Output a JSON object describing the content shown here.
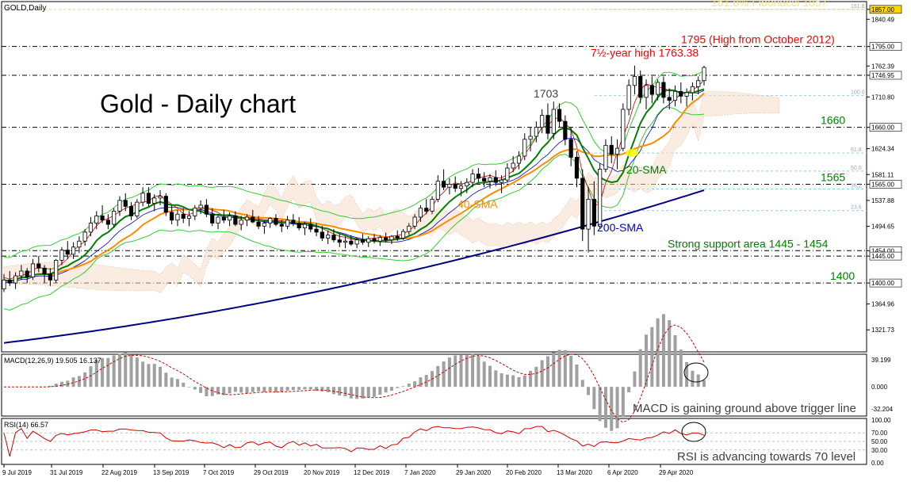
{
  "header": {
    "symbol_label": "GOLD,Daily"
  },
  "chart_data": {
    "type": "candlestick",
    "symbol": "GOLD",
    "timeframe": "Daily",
    "title": "Gold - Daily chart",
    "ylim": [
      1285,
      1870
    ],
    "y_ticks": [
      1840.49,
      1795.0,
      1762.39,
      1746.95,
      1710.8,
      1660.0,
      1624.34,
      1581.11,
      1565.0,
      1537.88,
      1494.65,
      1454.0,
      1445.0,
      1400.0,
      1364.96,
      1321.73,
      1857.0
    ],
    "x_labels": [
      "9 Jul 2019",
      "31 Jul 2019",
      "22 Aug 2019",
      "13 Sep 2019",
      "7 Oct 2019",
      "29 Oct 2019",
      "20 Nov 2019",
      "12 Dec 2019",
      "7 Jan 2020",
      "29 Jan 2020",
      "20 Feb 2020",
      "13 Mar 2020",
      "6 Apr 2020",
      "29 Apr 2020"
    ],
    "key_levels": [
      {
        "value": 1857,
        "label": "161.8% Fibonacci 1857",
        "color": "#f0e68c"
      },
      {
        "value": 1795,
        "label": "1795 (High from October 2012)",
        "color": "#ff0000"
      },
      {
        "value": 1746.95,
        "label": "",
        "color": "#000000"
      },
      {
        "value": 1660,
        "label": "1660",
        "color": "#008000"
      },
      {
        "value": 1565,
        "label": "1565",
        "color": "#008000"
      },
      {
        "value": 1454,
        "label": "Strong support area 1445 - 1454",
        "color": "#008000"
      },
      {
        "value": 1445,
        "label": "",
        "color": "#000000"
      },
      {
        "value": 1400,
        "label": "1400",
        "color": "#008000"
      }
    ],
    "fib_levels": [
      {
        "value": 1857,
        "label": "161.8"
      },
      {
        "value": 1713,
        "label": "100.0"
      },
      {
        "value": 1617,
        "label": "61.8"
      },
      {
        "value": 1587,
        "label": "50.0"
      },
      {
        "value": 1557,
        "label": "38.2"
      },
      {
        "value": 1521,
        "label": "23.6"
      }
    ],
    "annotations": [
      {
        "text": "7½-year high 1763.38",
        "color": "#ff0000"
      },
      {
        "text": "1703",
        "color": "#404040"
      },
      {
        "text": "20-SMA",
        "color": "#008000"
      },
      {
        "text": "40-SMA",
        "color": "#ff8c00"
      },
      {
        "text": "200-SMA",
        "color": "#0000cd"
      }
    ],
    "series": [
      {
        "name": "20-SMA",
        "color": "#008000"
      },
      {
        "name": "40-SMA",
        "color": "#ff8c00"
      },
      {
        "name": "200-SMA",
        "color": "#000080"
      }
    ],
    "ohlc": [
      [
        1390,
        1415,
        1385,
        1405
      ],
      [
        1405,
        1420,
        1395,
        1400
      ],
      [
        1400,
        1418,
        1390,
        1412
      ],
      [
        1412,
        1430,
        1405,
        1420
      ],
      [
        1420,
        1425,
        1400,
        1410
      ],
      [
        1410,
        1440,
        1405,
        1432
      ],
      [
        1432,
        1445,
        1418,
        1425
      ],
      [
        1425,
        1430,
        1400,
        1415
      ],
      [
        1415,
        1425,
        1395,
        1405
      ],
      [
        1405,
        1440,
        1400,
        1438
      ],
      [
        1438,
        1460,
        1430,
        1455
      ],
      [
        1455,
        1470,
        1440,
        1448
      ],
      [
        1448,
        1468,
        1440,
        1460
      ],
      [
        1460,
        1478,
        1450,
        1470
      ],
      [
        1470,
        1490,
        1462,
        1485
      ],
      [
        1485,
        1510,
        1478,
        1500
      ],
      [
        1500,
        1520,
        1490,
        1512
      ],
      [
        1512,
        1530,
        1500,
        1505
      ],
      [
        1505,
        1515,
        1490,
        1498
      ],
      [
        1498,
        1525,
        1492,
        1520
      ],
      [
        1520,
        1545,
        1512,
        1538
      ],
      [
        1538,
        1550,
        1520,
        1528
      ],
      [
        1528,
        1535,
        1505,
        1512
      ],
      [
        1512,
        1540,
        1508,
        1535
      ],
      [
        1535,
        1560,
        1528,
        1550
      ],
      [
        1550,
        1560,
        1528,
        1533
      ],
      [
        1533,
        1548,
        1520,
        1542
      ],
      [
        1542,
        1555,
        1530,
        1545
      ],
      [
        1545,
        1550,
        1512,
        1518
      ],
      [
        1518,
        1530,
        1498,
        1505
      ],
      [
        1505,
        1522,
        1495,
        1515
      ],
      [
        1515,
        1525,
        1500,
        1508
      ],
      [
        1508,
        1520,
        1495,
        1512
      ],
      [
        1512,
        1530,
        1505,
        1525
      ],
      [
        1525,
        1538,
        1515,
        1530
      ],
      [
        1530,
        1540,
        1510,
        1515
      ],
      [
        1515,
        1525,
        1495,
        1500
      ],
      [
        1500,
        1515,
        1490,
        1510
      ],
      [
        1510,
        1522,
        1500,
        1505
      ],
      [
        1505,
        1518,
        1495,
        1512
      ],
      [
        1512,
        1520,
        1495,
        1498
      ],
      [
        1498,
        1512,
        1488,
        1505
      ],
      [
        1505,
        1515,
        1495,
        1510
      ],
      [
        1510,
        1522,
        1500,
        1502
      ],
      [
        1502,
        1512,
        1490,
        1495
      ],
      [
        1495,
        1505,
        1482,
        1500
      ],
      [
        1500,
        1510,
        1492,
        1508
      ],
      [
        1508,
        1515,
        1495,
        1498
      ],
      [
        1498,
        1505,
        1485,
        1495
      ],
      [
        1495,
        1512,
        1490,
        1505
      ],
      [
        1505,
        1515,
        1495,
        1500
      ],
      [
        1500,
        1510,
        1488,
        1492
      ],
      [
        1492,
        1502,
        1480,
        1498
      ],
      [
        1498,
        1508,
        1485,
        1490
      ],
      [
        1490,
        1500,
        1478,
        1485
      ],
      [
        1485,
        1495,
        1470,
        1475
      ],
      [
        1475,
        1488,
        1465,
        1480
      ],
      [
        1480,
        1490,
        1468,
        1472
      ],
      [
        1472,
        1482,
        1460,
        1468
      ],
      [
        1468,
        1478,
        1458,
        1470
      ],
      [
        1470,
        1480,
        1462,
        1465
      ],
      [
        1465,
        1476,
        1458,
        1472
      ],
      [
        1472,
        1482,
        1464,
        1468
      ],
      [
        1468,
        1478,
        1460,
        1474
      ],
      [
        1474,
        1482,
        1466,
        1470
      ],
      [
        1470,
        1480,
        1462,
        1476
      ],
      [
        1476,
        1484,
        1468,
        1472
      ],
      [
        1472,
        1480,
        1465,
        1478
      ],
      [
        1478,
        1488,
        1470,
        1475
      ],
      [
        1475,
        1490,
        1472,
        1486
      ],
      [
        1486,
        1500,
        1480,
        1495
      ],
      [
        1495,
        1515,
        1490,
        1510
      ],
      [
        1510,
        1530,
        1502,
        1525
      ],
      [
        1525,
        1540,
        1515,
        1520
      ],
      [
        1520,
        1545,
        1515,
        1540
      ],
      [
        1540,
        1580,
        1535,
        1570
      ],
      [
        1570,
        1590,
        1555,
        1560
      ],
      [
        1560,
        1575,
        1548,
        1565
      ],
      [
        1565,
        1578,
        1552,
        1558
      ],
      [
        1558,
        1570,
        1545,
        1562
      ],
      [
        1562,
        1575,
        1550,
        1568
      ],
      [
        1568,
        1590,
        1560,
        1582
      ],
      [
        1582,
        1592,
        1568,
        1575
      ],
      [
        1575,
        1585,
        1560,
        1570
      ],
      [
        1570,
        1582,
        1558,
        1576
      ],
      [
        1576,
        1588,
        1562,
        1568
      ],
      [
        1568,
        1580,
        1550,
        1572
      ],
      [
        1572,
        1600,
        1568,
        1592
      ],
      [
        1592,
        1612,
        1585,
        1600
      ],
      [
        1600,
        1620,
        1590,
        1612
      ],
      [
        1612,
        1650,
        1605,
        1640
      ],
      [
        1640,
        1660,
        1620,
        1645
      ],
      [
        1645,
        1670,
        1635,
        1660
      ],
      [
        1660,
        1690,
        1650,
        1680
      ],
      [
        1680,
        1700,
        1640,
        1650
      ],
      [
        1650,
        1703,
        1640,
        1690
      ],
      [
        1690,
        1700,
        1660,
        1670
      ],
      [
        1670,
        1680,
        1630,
        1640
      ],
      [
        1640,
        1660,
        1595,
        1610
      ],
      [
        1610,
        1620,
        1560,
        1575
      ],
      [
        1575,
        1590,
        1470,
        1490
      ],
      [
        1490,
        1560,
        1451,
        1540
      ],
      [
        1540,
        1570,
        1480,
        1495
      ],
      [
        1495,
        1600,
        1490,
        1590
      ],
      [
        1590,
        1640,
        1585,
        1630
      ],
      [
        1630,
        1645,
        1600,
        1615
      ],
      [
        1615,
        1640,
        1590,
        1625
      ],
      [
        1625,
        1700,
        1620,
        1690
      ],
      [
        1690,
        1740,
        1680,
        1730
      ],
      [
        1730,
        1763,
        1715,
        1745
      ],
      [
        1745,
        1755,
        1700,
        1710
      ],
      [
        1710,
        1740,
        1690,
        1730
      ],
      [
        1730,
        1745,
        1700,
        1715
      ],
      [
        1715,
        1740,
        1705,
        1735
      ],
      [
        1735,
        1745,
        1700,
        1710
      ],
      [
        1710,
        1725,
        1690,
        1705
      ],
      [
        1705,
        1730,
        1695,
        1720
      ],
      [
        1720,
        1735,
        1700,
        1712
      ],
      [
        1712,
        1725,
        1695,
        1718
      ],
      [
        1718,
        1735,
        1705,
        1728
      ],
      [
        1728,
        1745,
        1715,
        1738
      ],
      [
        1738,
        1763,
        1730,
        1760
      ]
    ],
    "macd": {
      "label": "MACD(12,26,9) 19.505 16.137",
      "ticks": [
        39.199,
        0.0,
        -32.204
      ],
      "ylim": [
        -40,
        45
      ],
      "note": "MACD is gaining ground above trigger line"
    },
    "rsi": {
      "label": "RSI(14) 66.57",
      "ticks": [
        100.0,
        70.0,
        50.0,
        30.0,
        0.0
      ],
      "ylim": [
        0,
        100
      ],
      "note": "RSI is advancing towards 70 level"
    }
  }
}
